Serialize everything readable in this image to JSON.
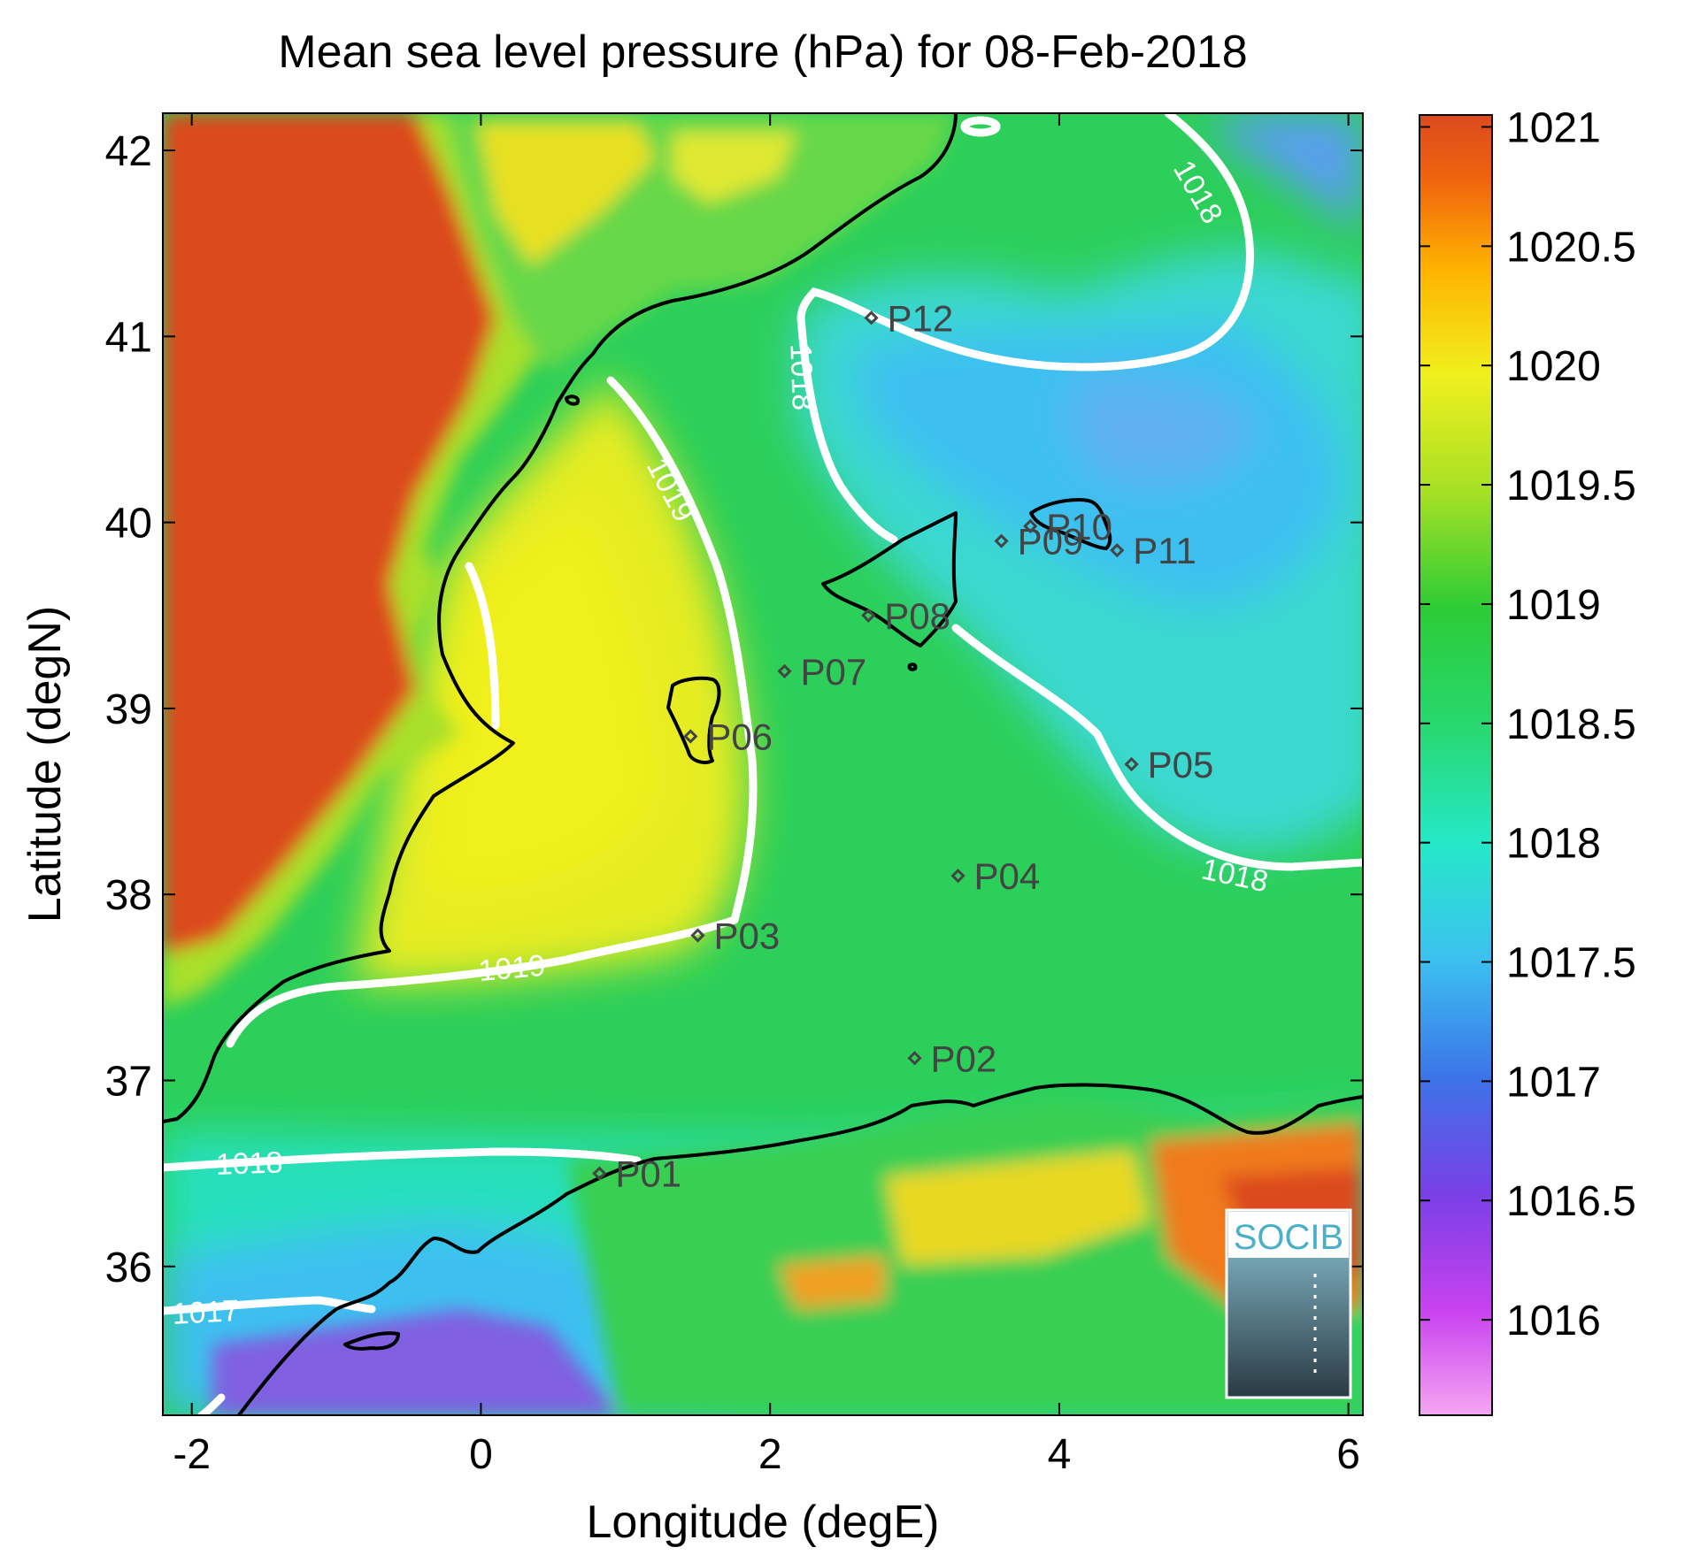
{
  "title": "Mean sea level pressure (hPa) for 08-Feb-2018",
  "xlabel": "Longitude (degE)",
  "ylabel": "Latitude (degN)",
  "x_ticks": [
    {
      "v": -2,
      "label": "-2"
    },
    {
      "v": 0,
      "label": "0"
    },
    {
      "v": 2,
      "label": "2"
    },
    {
      "v": 4,
      "label": "4"
    },
    {
      "v": 6,
      "label": "6"
    }
  ],
  "y_ticks": [
    {
      "v": 36,
      "label": "36"
    },
    {
      "v": 37,
      "label": "37"
    },
    {
      "v": 38,
      "label": "38"
    },
    {
      "v": 39,
      "label": "39"
    },
    {
      "v": 40,
      "label": "40"
    },
    {
      "v": 41,
      "label": "41"
    },
    {
      "v": 42,
      "label": "42"
    }
  ],
  "colorbar": {
    "range": [
      1015.6,
      1021.05
    ],
    "ticks": [
      {
        "v": 1016,
        "label": "1016"
      },
      {
        "v": 1016.5,
        "label": "1016.5"
      },
      {
        "v": 1017,
        "label": "1017"
      },
      {
        "v": 1017.5,
        "label": "1017.5"
      },
      {
        "v": 1018,
        "label": "1018"
      },
      {
        "v": 1018.5,
        "label": "1018.5"
      },
      {
        "v": 1019,
        "label": "1019"
      },
      {
        "v": 1019.5,
        "label": "1019.5"
      },
      {
        "v": 1020,
        "label": "1020"
      },
      {
        "v": 1020.5,
        "label": "1020.5"
      },
      {
        "v": 1021,
        "label": "1021"
      }
    ],
    "colors": [
      "#f5a6f2",
      "#c942f0",
      "#7a3fe6",
      "#3c74e8",
      "#3cc0f0",
      "#25e8c8",
      "#28d870",
      "#2ccc36",
      "#a6e025",
      "#f0f01e",
      "#ffb400",
      "#f0640e",
      "#dc4a1e"
    ]
  },
  "chart_data": {
    "type": "heatmap",
    "variable": "Mean sea level pressure (hPa)",
    "date": "08-Feb-2018",
    "xlim": [
      -2.2,
      6.1
    ],
    "ylim": [
      35.2,
      42.2
    ],
    "stations": [
      {
        "name": "P01",
        "lon": 0.82,
        "lat": 36.5
      },
      {
        "name": "P02",
        "lon": 3.0,
        "lat": 37.12
      },
      {
        "name": "P03",
        "lon": 1.5,
        "lat": 37.78
      },
      {
        "name": "P04",
        "lon": 3.3,
        "lat": 38.1
      },
      {
        "name": "P05",
        "lon": 4.5,
        "lat": 38.7
      },
      {
        "name": "P06",
        "lon": 1.45,
        "lat": 38.85
      },
      {
        "name": "P07",
        "lon": 2.1,
        "lat": 39.2
      },
      {
        "name": "P08",
        "lon": 2.68,
        "lat": 39.5
      },
      {
        "name": "P09",
        "lon": 3.6,
        "lat": 39.9
      },
      {
        "name": "P10",
        "lon": 3.8,
        "lat": 39.98
      },
      {
        "name": "P11",
        "lon": 4.4,
        "lat": 39.85
      },
      {
        "name": "P12",
        "lon": 2.7,
        "lat": 41.1
      }
    ],
    "contour_labels": [
      {
        "text": "1018",
        "lon": 4.9,
        "lat": 41.75,
        "rot": 60
      },
      {
        "text": "1018",
        "lon": 2.15,
        "lat": 40.78,
        "rot": 88
      },
      {
        "text": "1019",
        "lon": 1.25,
        "lat": 40.15,
        "rot": 62
      },
      {
        "text": "1018",
        "lon": 5.2,
        "lat": 38.05,
        "rot": 12
      },
      {
        "text": "1019",
        "lon": 0.22,
        "lat": 37.55,
        "rot": -5
      },
      {
        "text": "1018",
        "lon": -1.6,
        "lat": 36.5,
        "rot": -2
      },
      {
        "text": "1017",
        "lon": -1.9,
        "lat": 35.7,
        "rot": -3
      }
    ]
  },
  "logo": {
    "text": "SOCIB"
  }
}
